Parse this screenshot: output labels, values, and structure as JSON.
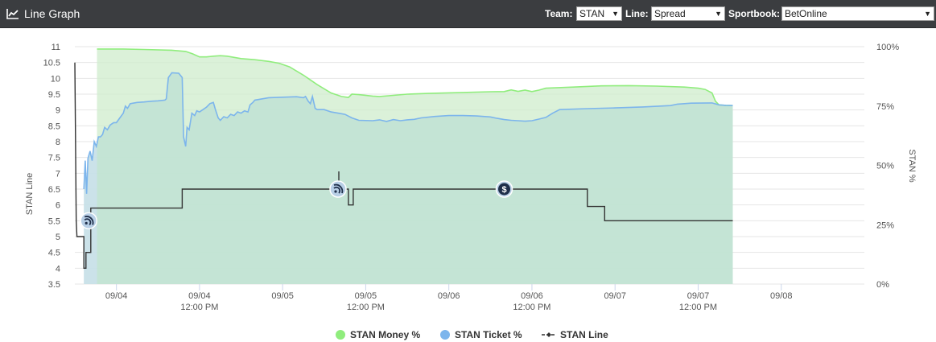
{
  "header": {
    "title": "Line Graph",
    "team_label": "Team:",
    "team_value": "STAN",
    "line_label": "Line:",
    "line_value": "Spread",
    "sportbook_label": "Sportbook:",
    "sportbook_value": "BetOnline",
    "icon": "line-chart-icon"
  },
  "chart_data": {
    "type": "line",
    "y_left": {
      "title": "STAN Line",
      "min": 3.5,
      "max": 11,
      "ticks": [
        "3.5",
        "4",
        "4.5",
        "5",
        "5.5",
        "6",
        "6.5",
        "7",
        "7.5",
        "8",
        "8.5",
        "9",
        "9.5",
        "10",
        "10.5",
        "11"
      ]
    },
    "y_right": {
      "title": "STAN %",
      "min": 0,
      "max": 100,
      "ticks": [
        "0%",
        "25%",
        "50%",
        "75%",
        "100%"
      ]
    },
    "x_range": [
      0,
      114
    ],
    "x_ticks": [
      {
        "t": 6,
        "date": "09/04",
        "time": ""
      },
      {
        "t": 18,
        "date": "09/04",
        "time": "12:00 PM"
      },
      {
        "t": 30,
        "date": "09/05",
        "time": ""
      },
      {
        "t": 42,
        "date": "09/05",
        "time": "12:00 PM"
      },
      {
        "t": 54,
        "date": "09/06",
        "time": ""
      },
      {
        "t": 66,
        "date": "09/06",
        "time": "12:00 PM"
      },
      {
        "t": 78,
        "date": "09/07",
        "time": ""
      },
      {
        "t": 90,
        "date": "09/07",
        "time": "12:00 PM"
      },
      {
        "t": 102,
        "date": "09/08",
        "time": ""
      }
    ],
    "grid": true,
    "legend_position": "bottom",
    "series": [
      {
        "name": "STAN Money %",
        "axis": "right",
        "color": "#90ed7d",
        "fill": "#cfeccc",
        "points": [
          [
            3.2,
            99
          ],
          [
            7,
            99
          ],
          [
            10,
            98.8
          ],
          [
            14,
            98.5
          ],
          [
            16,
            98
          ],
          [
            17,
            97
          ],
          [
            18,
            95.7
          ],
          [
            19,
            95.7
          ],
          [
            20,
            96
          ],
          [
            21,
            96.2
          ],
          [
            22,
            96
          ],
          [
            23,
            95.5
          ],
          [
            24,
            95
          ],
          [
            26,
            94.5
          ],
          [
            28,
            93.8
          ],
          [
            29.5,
            93
          ],
          [
            31,
            91.5
          ],
          [
            33,
            88
          ],
          [
            35,
            84
          ],
          [
            37,
            80.5
          ],
          [
            38.5,
            79
          ],
          [
            39.5,
            78.6
          ],
          [
            40,
            80
          ],
          [
            41,
            79.8
          ],
          [
            43,
            79.2
          ],
          [
            44,
            79
          ],
          [
            46,
            79.5
          ],
          [
            48,
            80
          ],
          [
            51,
            80.3
          ],
          [
            55,
            80.6
          ],
          [
            60,
            81
          ],
          [
            62,
            81.1
          ],
          [
            63,
            81.8
          ],
          [
            64,
            81.2
          ],
          [
            65,
            81.7
          ],
          [
            66,
            81.1
          ],
          [
            67,
            81.7
          ],
          [
            68,
            82.5
          ],
          [
            72,
            83
          ],
          [
            76,
            83.5
          ],
          [
            80,
            83.6
          ],
          [
            84,
            83.4
          ],
          [
            88,
            83
          ],
          [
            90,
            82.5
          ],
          [
            91,
            82
          ],
          [
            92,
            80.5
          ],
          [
            92.5,
            77
          ],
          [
            93,
            75.5
          ],
          [
            94,
            75.3
          ],
          [
            95,
            75.2
          ]
        ]
      },
      {
        "name": "STAN Ticket %",
        "axis": "right",
        "color": "#7cb5ec",
        "fill": "#d9e6f5",
        "points": [
          [
            1.3,
            40
          ],
          [
            1.5,
            52
          ],
          [
            1.7,
            38
          ],
          [
            1.9,
            53
          ],
          [
            2.2,
            56
          ],
          [
            2.5,
            52
          ],
          [
            2.8,
            60
          ],
          [
            3.1,
            58
          ],
          [
            3.4,
            62
          ],
          [
            3.7,
            62
          ],
          [
            4.0,
            63
          ],
          [
            4.3,
            66
          ],
          [
            4.7,
            65
          ],
          [
            5.1,
            67
          ],
          [
            5.6,
            68
          ],
          [
            6,
            68
          ],
          [
            6.5,
            70
          ],
          [
            7,
            72
          ],
          [
            7.3,
            75
          ],
          [
            7.6,
            74
          ],
          [
            8,
            76
          ],
          [
            9,
            76.5
          ],
          [
            10,
            76.7
          ],
          [
            11,
            77
          ],
          [
            12,
            77.2
          ],
          [
            13,
            77.5
          ],
          [
            13.2,
            78
          ],
          [
            13.5,
            87
          ],
          [
            14,
            89
          ],
          [
            15,
            88.8
          ],
          [
            15.5,
            87
          ],
          [
            15.7,
            62
          ],
          [
            16,
            58
          ],
          [
            16.2,
            66
          ],
          [
            16.5,
            65
          ],
          [
            16.9,
            72
          ],
          [
            17.3,
            71
          ],
          [
            17.6,
            73
          ],
          [
            18,
            72.5
          ],
          [
            18.5,
            73.5
          ],
          [
            19,
            74.5
          ],
          [
            19.5,
            76
          ],
          [
            20,
            76.5
          ],
          [
            20.3,
            73.5
          ],
          [
            20.7,
            70
          ],
          [
            21,
            69
          ],
          [
            21.5,
            70.5
          ],
          [
            22,
            70
          ],
          [
            22.5,
            71.5
          ],
          [
            23,
            71
          ],
          [
            23.5,
            72.5
          ],
          [
            24,
            72
          ],
          [
            24.5,
            73
          ],
          [
            25,
            72.5
          ],
          [
            25.3,
            75.5
          ],
          [
            25.7,
            76.5
          ],
          [
            26,
            77.5
          ],
          [
            27,
            78
          ],
          [
            28,
            78.5
          ],
          [
            30,
            78.7
          ],
          [
            32,
            78.9
          ],
          [
            33,
            78.5
          ],
          [
            33.3,
            79
          ],
          [
            33.7,
            77
          ],
          [
            34,
            76
          ],
          [
            34.3,
            79
          ],
          [
            34.7,
            74
          ],
          [
            35,
            73.5
          ],
          [
            36,
            73.5
          ],
          [
            37,
            72.5
          ],
          [
            38,
            72
          ],
          [
            39,
            71.5
          ],
          [
            40,
            70
          ],
          [
            41,
            69
          ],
          [
            43,
            68.8
          ],
          [
            44,
            69.2
          ],
          [
            45,
            68.5
          ],
          [
            46,
            69.3
          ],
          [
            47,
            68.8
          ],
          [
            48,
            69.2
          ],
          [
            49,
            69.4
          ],
          [
            50,
            70
          ],
          [
            52,
            70.6
          ],
          [
            54,
            71
          ],
          [
            56,
            71
          ],
          [
            58,
            70.8
          ],
          [
            60,
            70.4
          ],
          [
            61,
            69.8
          ],
          [
            62,
            69.3
          ],
          [
            63,
            69
          ],
          [
            64,
            68.8
          ],
          [
            65,
            68.6
          ],
          [
            66,
            68.8
          ],
          [
            67,
            69.5
          ],
          [
            68,
            70.2
          ],
          [
            69,
            72
          ],
          [
            70,
            73.5
          ],
          [
            74,
            73.9
          ],
          [
            78,
            74.2
          ],
          [
            82,
            74.6
          ],
          [
            86,
            75.2
          ],
          [
            87,
            75.8
          ],
          [
            89,
            76.2
          ],
          [
            92,
            76.3
          ],
          [
            93,
            75.5
          ],
          [
            94,
            75.3
          ],
          [
            95,
            75.2
          ]
        ]
      },
      {
        "name": "STAN Line",
        "axis": "left",
        "color": "#333333",
        "points": [
          [
            0,
            10.5
          ],
          [
            0.2,
            5.5
          ],
          [
            0.3,
            5.0
          ],
          [
            1.3,
            5.0
          ],
          [
            1.3,
            4.0
          ],
          [
            1.6,
            4.0
          ],
          [
            1.6,
            4.5
          ],
          [
            2.3,
            4.5
          ],
          [
            2.3,
            5.9
          ],
          [
            15.5,
            5.9
          ],
          [
            15.5,
            6.5
          ],
          [
            39.5,
            6.5
          ],
          [
            39.5,
            6.0
          ],
          [
            40.2,
            6.0
          ],
          [
            40.2,
            6.5
          ],
          [
            74,
            6.5
          ],
          [
            74,
            5.95
          ],
          [
            76.5,
            5.95
          ],
          [
            76.5,
            5.5
          ],
          [
            95,
            5.5
          ]
        ]
      }
    ],
    "annotations": [
      {
        "icon": "rss-icon",
        "t": 2.0,
        "y": 5.5
      },
      {
        "icon": "rss-icon",
        "t": 38.0,
        "y": 6.5
      },
      {
        "icon": "dollar-icon",
        "t": 62.0,
        "y": 6.5
      }
    ]
  }
}
